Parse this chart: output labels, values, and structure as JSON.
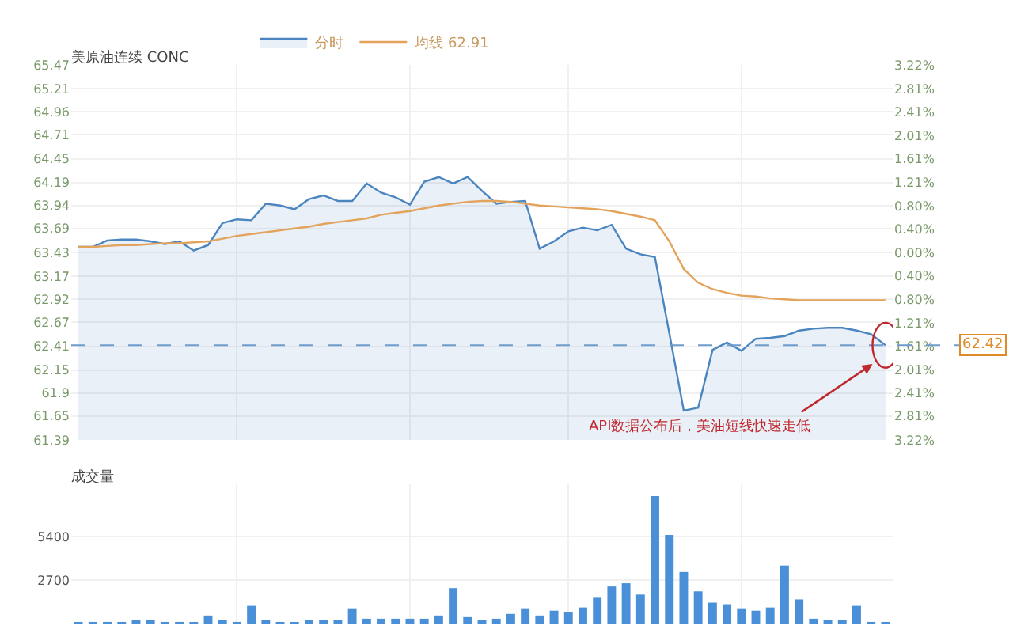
{
  "chart_data": [
    {
      "type": "line",
      "title": "美原油连续 CONC",
      "categories": [
        null,
        null,
        null,
        null,
        null,
        null,
        null,
        null,
        null,
        null,
        null,
        null,
        null,
        null,
        null,
        null,
        null,
        null,
        null,
        null,
        null,
        null,
        null,
        null,
        null,
        null,
        null,
        null,
        null,
        null,
        null,
        null,
        null,
        null,
        null,
        null,
        null,
        null,
        null,
        null,
        null,
        null,
        null,
        null,
        null,
        null,
        null,
        null,
        null,
        null,
        null,
        null,
        null,
        null,
        null,
        null,
        null
      ],
      "series": [
        {
          "name": "分时",
          "type": "area",
          "color": "#4a85c0",
          "values": [
            63.49,
            63.49,
            63.56,
            63.57,
            63.57,
            63.55,
            63.52,
            63.55,
            63.45,
            63.51,
            63.75,
            63.79,
            63.78,
            63.96,
            63.94,
            63.9,
            64.01,
            64.05,
            63.99,
            63.99,
            64.18,
            64.08,
            64.03,
            63.95,
            64.2,
            64.25,
            64.18,
            64.25,
            64.1,
            63.96,
            63.98,
            63.99,
            63.47,
            63.55,
            63.66,
            63.7,
            63.67,
            63.73,
            63.47,
            63.41,
            63.38,
            62.55,
            61.71,
            61.74,
            62.37,
            62.45,
            62.36,
            62.49,
            62.5,
            62.52,
            62.58,
            62.6,
            62.61,
            62.61,
            62.58,
            62.54,
            62.42
          ]
        },
        {
          "name": "均线 62.91",
          "type": "line",
          "color": "#e3a35a",
          "values": [
            63.49,
            63.49,
            63.5,
            63.51,
            63.51,
            63.52,
            63.53,
            63.53,
            63.54,
            63.55,
            63.58,
            63.61,
            63.63,
            63.65,
            63.67,
            63.69,
            63.71,
            63.74,
            63.76,
            63.78,
            63.8,
            63.84,
            63.86,
            63.88,
            63.91,
            63.94,
            63.96,
            63.98,
            63.99,
            63.99,
            63.98,
            63.96,
            63.94,
            63.93,
            63.92,
            63.91,
            63.9,
            63.88,
            63.85,
            63.82,
            63.78,
            63.55,
            63.25,
            63.1,
            63.03,
            62.99,
            62.96,
            62.95,
            62.93,
            62.92,
            62.91,
            62.91,
            62.91,
            62.91,
            62.91,
            62.91,
            62.91
          ]
        }
      ],
      "ylim": [
        61.39,
        65.47
      ],
      "yticks": [
        61.39,
        61.65,
        61.9,
        62.15,
        62.41,
        62.67,
        62.92,
        63.17,
        63.43,
        63.69,
        63.94,
        64.19,
        64.45,
        64.71,
        64.96,
        65.21,
        65.47
      ],
      "y2lim": [
        -3.22,
        3.22
      ],
      "y2ticks": [
        {
          "value": -3.22,
          "label": "3.22%"
        },
        {
          "value": -2.81,
          "label": "2.81%"
        },
        {
          "value": -2.41,
          "label": "2.41%"
        },
        {
          "value": -2.01,
          "label": "2.01%"
        },
        {
          "value": -1.61,
          "label": "1.61%"
        },
        {
          "value": -1.21,
          "label": "1.21%"
        },
        {
          "value": -0.8,
          "label": "0.80%"
        },
        {
          "value": -0.4,
          "label": "0.40%"
        },
        {
          "value": 0,
          "label": "0.00%"
        },
        {
          "value": 0.4,
          "label": "0.40%"
        },
        {
          "value": 0.8,
          "label": "0.80%"
        },
        {
          "value": 1.21,
          "label": "1.21%"
        },
        {
          "value": 1.61,
          "label": "1.61%"
        },
        {
          "value": 2.01,
          "label": "2.01%"
        },
        {
          "value": 2.41,
          "label": "2.41%"
        },
        {
          "value": 2.81,
          "label": "2.81%"
        },
        {
          "value": 3.22,
          "label": "3.22%"
        }
      ],
      "grid": true,
      "legend": "top left",
      "ref_lines": [
        {
          "axis": "y",
          "value": 62.42,
          "label": "62.42",
          "line_style": "dashed",
          "color": "#6f9ccc"
        }
      ],
      "annotations": [
        "API数据公布后，美油短线快速走低"
      ]
    },
    {
      "type": "bar",
      "title": "成交量",
      "categories": [
        null,
        null,
        null,
        null,
        null,
        null,
        null,
        null,
        null,
        null,
        null,
        null,
        null,
        null,
        null,
        null,
        null,
        null,
        null,
        null,
        null,
        null,
        null,
        null,
        null,
        null,
        null,
        null,
        null,
        null,
        null,
        null,
        null,
        null,
        null,
        null,
        null,
        null,
        null,
        null,
        null,
        null,
        null,
        null,
        null,
        null,
        null,
        null,
        null,
        null,
        null,
        null,
        null,
        null,
        null,
        null,
        null
      ],
      "series": [
        {
          "color": "#4a90d9",
          "values": [
            100,
            100,
            100,
            100,
            200,
            200,
            100,
            100,
            100,
            500,
            200,
            100,
            1100,
            200,
            100,
            100,
            200,
            200,
            200,
            900,
            300,
            300,
            300,
            300,
            300,
            500,
            2200,
            400,
            200,
            300,
            600,
            900,
            500,
            800,
            700,
            1000,
            1600,
            2300,
            2500,
            1800,
            7900,
            5500,
            3200,
            2000,
            1300,
            1200,
            900,
            800,
            1000,
            3600,
            1500,
            300,
            200,
            200,
            1100,
            100,
            100
          ]
        }
      ],
      "ylim": [
        0,
        8640
      ],
      "yticks": [
        2700,
        5400
      ],
      "grid": true
    }
  ]
}
